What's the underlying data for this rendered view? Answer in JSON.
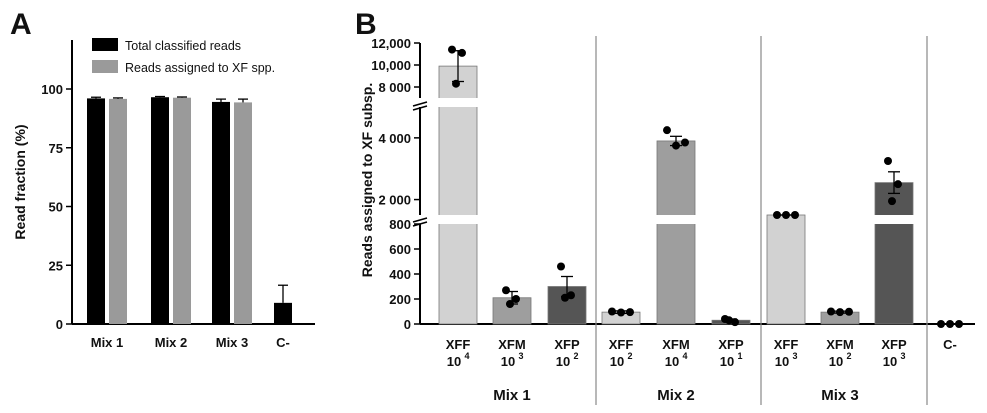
{
  "chart_data": [
    {
      "panel": "A",
      "type": "bar",
      "ylabel": "Read fraction (%)",
      "ylim": [
        0,
        110
      ],
      "yticks": [
        "0",
        "25",
        "50",
        "75",
        "100"
      ],
      "categories": [
        "Mix 1",
        "Mix 2",
        "Mix 3",
        "C-"
      ],
      "series": [
        {
          "name": "Total classified reads",
          "color": "#000000",
          "values": [
            96,
            96.5,
            94.5,
            9
          ],
          "errors": [
            0.5,
            0.3,
            1.2,
            7.5
          ]
        },
        {
          "name": "Reads assigned to XF spp.",
          "color": "#9a9a9a",
          "values": [
            95.8,
            96.3,
            94.3,
            null
          ],
          "errors": [
            0.4,
            0.3,
            1.4,
            null
          ]
        }
      ],
      "legend": "top-right",
      "grid": false
    },
    {
      "panel": "B",
      "type": "bar",
      "ylabel": "Reads assigned to XF subsp.",
      "scale": "broken",
      "segments": [
        {
          "range": [
            0,
            800
          ],
          "ticks": [
            "0",
            "200",
            "400",
            "600",
            "800"
          ]
        },
        {
          "range": [
            1500,
            5000
          ],
          "ticks": [
            "2 000",
            "4 000"
          ]
        },
        {
          "range": [
            7000,
            12000
          ],
          "ticks": [
            "8 000",
            "10,000",
            "12,000"
          ]
        }
      ],
      "groups": [
        "Mix 1",
        "Mix 2",
        "Mix 3",
        "C-"
      ],
      "bars": [
        {
          "group": "Mix 1",
          "label": "XFF",
          "exp": "4",
          "value": 9900,
          "error": 1400,
          "color": "#d2d2d2",
          "points": [
            11400,
            11100,
            8300
          ]
        },
        {
          "group": "Mix 1",
          "label": "XFM",
          "exp": "3",
          "value": 210,
          "error": 50,
          "color": "#9e9e9e",
          "points": [
            270,
            200,
            160
          ]
        },
        {
          "group": "Mix 1",
          "label": "XFP",
          "exp": "2",
          "value": 300,
          "error": 80,
          "color": "#555555",
          "points": [
            460,
            230,
            210
          ]
        },
        {
          "group": "Mix 2",
          "label": "XFF",
          "exp": "2",
          "value": 95,
          "error": 10,
          "color": "#d2d2d2",
          "points": [
            100,
            92,
            95
          ]
        },
        {
          "group": "Mix 2",
          "label": "XFM",
          "exp": "4",
          "value": 3900,
          "error": 150,
          "color": "#9e9e9e",
          "points": [
            4250,
            3750,
            3850
          ]
        },
        {
          "group": "Mix 2",
          "label": "XFP",
          "exp": "1",
          "value": 30,
          "error": 10,
          "color": "#555555",
          "points": [
            40,
            15,
            30
          ]
        },
        {
          "group": "Mix 3",
          "label": "XFF",
          "exp": "3",
          "value": 1320,
          "error": 30,
          "color": "#d2d2d2",
          "points": [
            1300,
            1290,
            1300
          ]
        },
        {
          "group": "Mix 3",
          "label": "XFM",
          "exp": "2",
          "value": 95,
          "error": 8,
          "color": "#9e9e9e",
          "points": [
            100,
            95,
            98
          ]
        },
        {
          "group": "Mix 3",
          "label": "XFP",
          "exp": "3",
          "value": 2550,
          "error": 350,
          "color": "#555555",
          "points": [
            3250,
            2500,
            1950
          ]
        },
        {
          "group": "C-",
          "label": "C-",
          "exp": "",
          "value": 0,
          "error": 0,
          "color": "#555555",
          "points": [
            0,
            0,
            0
          ]
        }
      ]
    }
  ]
}
